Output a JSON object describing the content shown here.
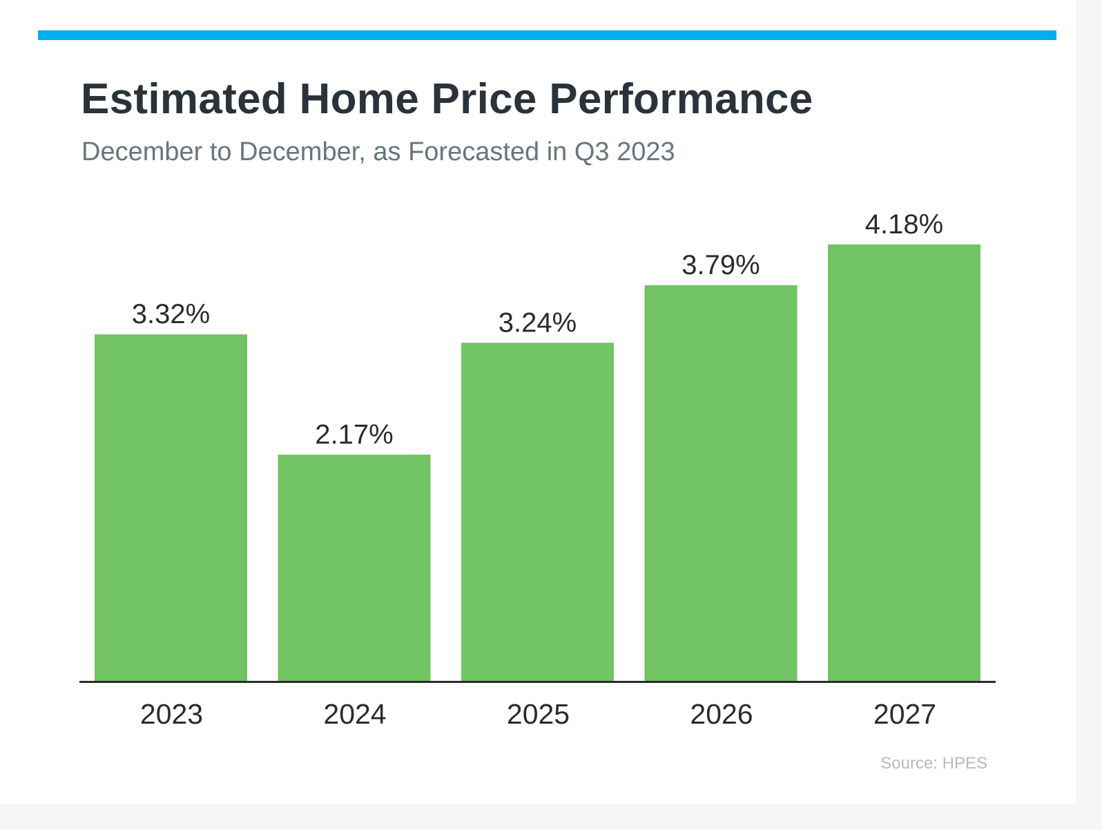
{
  "title": "Estimated Home Price Performance",
  "subtitle": "December to December, as Forecasted in Q3 2023",
  "source": "Source: HPES",
  "colors": {
    "accent_bar": "#00aeef",
    "bar": "#72c363",
    "axis": "#2b2b2b",
    "label_text": "#2b2b2b"
  },
  "chart_data": {
    "type": "bar",
    "categories": [
      "2023",
      "2024",
      "2025",
      "2026",
      "2027"
    ],
    "values": [
      3.32,
      2.17,
      3.24,
      3.79,
      4.18
    ],
    "value_labels": [
      "3.32%",
      "2.17%",
      "3.24%",
      "3.79%",
      "4.18%"
    ],
    "title": "Estimated Home Price Performance",
    "subtitle": "December to December, as Forecasted in Q3 2023",
    "xlabel": "",
    "ylabel": "",
    "ylim": [
      0,
      4.18
    ],
    "grid": false,
    "legend": "none"
  }
}
